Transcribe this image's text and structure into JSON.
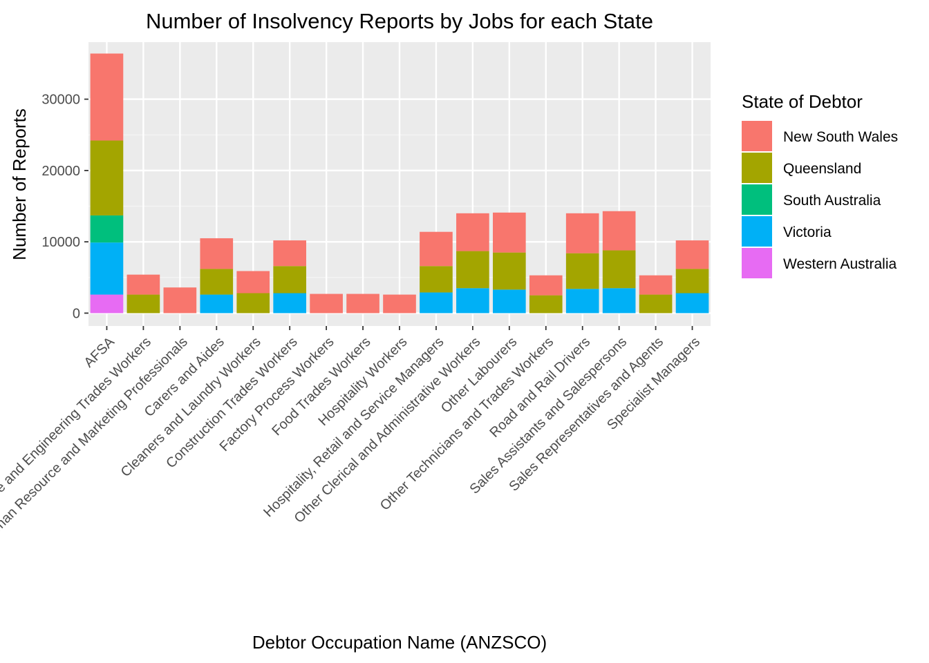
{
  "chart_data": {
    "type": "bar",
    "stacked": true,
    "title": "Number of Insolvency Reports by Jobs for each State",
    "xlabel": "Debtor Occupation Name (ANZSCO)",
    "ylabel": "Number of Reports",
    "ylim": [
      -1800,
      38000
    ],
    "yticks": [
      0,
      10000,
      20000,
      30000
    ],
    "ytick_labels": [
      "0",
      "10000",
      "20000",
      "30000"
    ],
    "grid": true,
    "legend_position": "right",
    "legend_title": "State of Debtor",
    "categories": [
      "AFSA",
      "Automotive and Engineering Trades Workers",
      "Business, Human Resource and Marketing Professionals",
      "Carers and Aides",
      "Cleaners and Laundry Workers",
      "Construction Trades Workers",
      "Factory Process Workers",
      "Food Trades Workers",
      "Hospitality Workers",
      "Hospitality, Retail and Service Managers",
      "Other Clerical and Administrative Workers",
      "Other Labourers",
      "Other Technicians and Trades Workers",
      "Road and Rail Drivers",
      "Sales Assistants and Salespersons",
      "Sales Representatives and Agents",
      "Specialist Managers"
    ],
    "stack_order": [
      "Western Australia",
      "Victoria",
      "South Australia",
      "Queensland",
      "New South Wales"
    ],
    "series": [
      {
        "name": "New South Wales",
        "color": "#F8766D",
        "values": [
          12200,
          2800,
          3600,
          4300,
          3100,
          3600,
          2700,
          2700,
          2600,
          4800,
          5300,
          5600,
          2800,
          5600,
          5500,
          2700,
          4000
        ]
      },
      {
        "name": "Queensland",
        "color": "#A3A500",
        "values": [
          10500,
          2600,
          0,
          3600,
          2800,
          3800,
          0,
          0,
          0,
          3700,
          5200,
          5200,
          2500,
          5000,
          5300,
          2600,
          3400
        ]
      },
      {
        "name": "South Australia",
        "color": "#00BF7D",
        "values": [
          3800,
          0,
          0,
          0,
          0,
          0,
          0,
          0,
          0,
          0,
          0,
          0,
          0,
          0,
          0,
          0,
          0
        ]
      },
      {
        "name": "Victoria",
        "color": "#00B0F6",
        "values": [
          7300,
          0,
          0,
          2600,
          0,
          2800,
          0,
          0,
          0,
          2900,
          3500,
          3300,
          0,
          3400,
          3500,
          0,
          2800
        ]
      },
      {
        "name": "Western Australia",
        "color": "#E76BF3",
        "values": [
          2600,
          0,
          0,
          0,
          0,
          0,
          0,
          0,
          0,
          0,
          0,
          0,
          0,
          0,
          0,
          0,
          0
        ]
      }
    ],
    "colors": {
      "panel_background": "#EBEBEB",
      "grid_major": "#FFFFFF",
      "grid_minor": "#F5F5F5"
    }
  }
}
